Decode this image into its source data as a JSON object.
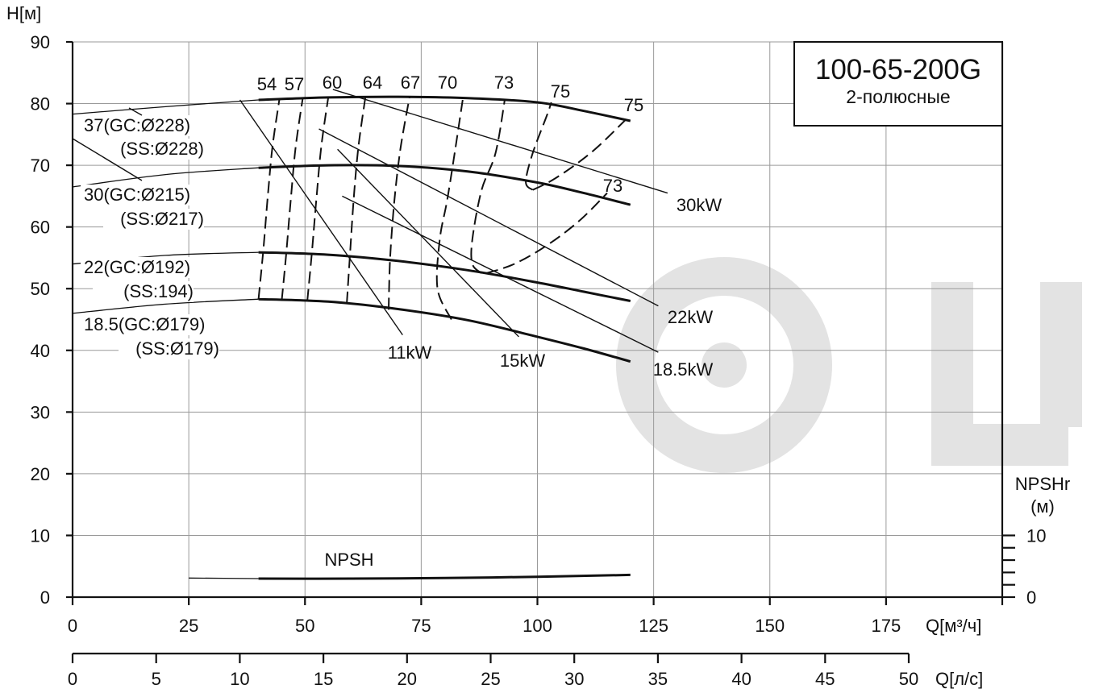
{
  "chart_data": {
    "type": "line",
    "title": "100-65-200G",
    "subtitle": "2-полюсные",
    "ylabel": "H[м]",
    "xlabel": "Q[м³/ч]",
    "x2label": "Q[л/с]",
    "y2label_line1": "NPSHr",
    "y2label_line2": "(м)",
    "xlim": [
      0,
      200
    ],
    "ylim": [
      0,
      90
    ],
    "x2lim": [
      0,
      50
    ],
    "grid": true,
    "yticks": [
      "0",
      "10",
      "20",
      "30",
      "40",
      "50",
      "60",
      "70",
      "80",
      "90"
    ],
    "xticks": [
      "0",
      "25",
      "50",
      "75",
      "100",
      "125",
      "150",
      "175"
    ],
    "x2ticks": [
      "0",
      "5",
      "10",
      "15",
      "20",
      "25",
      "30",
      "35",
      "40",
      "45",
      "50"
    ],
    "y2ticks": [
      "0",
      "10"
    ],
    "watermark": "LU",
    "curve_labels": [
      {
        "line1": "37(GC:Ø228)",
        "line2": "(SS:Ø228)"
      },
      {
        "line1": "30(GC:Ø215)",
        "line2": "(SS:Ø217)"
      },
      {
        "line1": "22(GC:Ø192)",
        "line2": "(SS:194)"
      },
      {
        "line1": "18.5(GC:Ø179)",
        "line2": "(SS:Ø179)"
      }
    ],
    "series": [
      {
        "name": "37(GC:Ø228)",
        "x": [
          0,
          20,
          40,
          55,
          70,
          85,
          100,
          110,
          120
        ],
        "y": [
          78.3,
          79.5,
          80.6,
          81.0,
          81.1,
          80.9,
          80.2,
          78.8,
          77.2
        ]
      },
      {
        "name": "30(GC:Ø215)",
        "x": [
          0,
          20,
          40,
          55,
          70,
          85,
          100,
          110,
          120
        ],
        "y": [
          66.5,
          68.5,
          69.6,
          70.0,
          69.9,
          69.0,
          67.2,
          65.5,
          63.6
        ]
      },
      {
        "name": "22(GC:Ø192)",
        "x": [
          0,
          20,
          40,
          55,
          70,
          85,
          100,
          110,
          120
        ],
        "y": [
          54.0,
          55.4,
          55.9,
          55.5,
          54.5,
          53.0,
          51.0,
          49.5,
          48.0
        ]
      },
      {
        "name": "18.5(GC:Ø179)",
        "x": [
          0,
          20,
          40,
          55,
          70,
          85,
          100,
          110,
          120
        ],
        "y": [
          46.0,
          47.5,
          48.3,
          47.9,
          46.7,
          44.9,
          42.2,
          40.3,
          38.2
        ]
      },
      {
        "name": "NPSH",
        "x": [
          25,
          40,
          60,
          80,
          100,
          120
        ],
        "y": [
          3.1,
          3.0,
          3.0,
          3.1,
          3.3,
          3.6
        ]
      }
    ],
    "efficiency_curves": [
      {
        "label": "54",
        "x": [
          40,
          41,
          42,
          43,
          44.5
        ],
        "y": [
          48.3,
          56,
          65,
          73,
          80.7
        ]
      },
      {
        "label": "57",
        "x": [
          45,
          46,
          47,
          48,
          49.5
        ],
        "y": [
          48.1,
          56,
          65,
          73,
          80.8
        ]
      },
      {
        "label": "60",
        "x": [
          50.5,
          51.5,
          52.5,
          53.5,
          55
        ],
        "y": [
          48.0,
          56,
          65,
          73,
          81.0
        ]
      },
      {
        "label": "64",
        "x": [
          59,
          59.7,
          60.5,
          61.5,
          63
        ],
        "y": [
          47.6,
          55.8,
          64.8,
          73,
          81.1
        ]
      },
      {
        "label": "67",
        "x": [
          68,
          68.3,
          69.2,
          70.5,
          72.5
        ],
        "y": [
          46.6,
          54.7,
          64,
          72.5,
          81.1
        ]
      },
      {
        "label": "70",
        "x": [
          81.5,
          78.5,
          79,
          80.5,
          82,
          84
        ],
        "y": [
          45,
          50,
          58,
          64,
          71,
          81.0
        ]
      },
      {
        "label": "73",
        "x": [
          88,
          86,
          86,
          88,
          91,
          93
        ],
        "y": [
          52.5,
          54,
          58,
          66,
          72,
          80.7
        ]
      },
      {
        "label": "75",
        "x": [
          99,
          97.5,
          99,
          102,
          103
        ],
        "y": [
          66,
          67.3,
          72,
          78,
          80.2
        ]
      },
      {
        "label": "73",
        "x": [
          89,
          95,
          102,
          109,
          115
        ],
        "y": [
          52.5,
          54,
          57,
          61,
          65.5
        ]
      },
      {
        "label": "75",
        "x": [
          99,
          103,
          108,
          113,
          119
        ],
        "y": [
          66,
          67.5,
          70,
          73,
          77.4
        ]
      }
    ],
    "efficiency_labels": [
      "54",
      "57",
      "60",
      "64",
      "67",
      "70",
      "73",
      "75",
      "75",
      "73"
    ],
    "power_lines": [
      {
        "label": "11kW",
        "x": [
          36,
          71
        ],
        "y": [
          80.6,
          42.5
        ]
      },
      {
        "label": "15kW",
        "x": [
          57,
          96
        ],
        "y": [
          72.6,
          42.2
        ]
      },
      {
        "label": "18.5kW",
        "x": [
          58,
          126
        ],
        "y": [
          65,
          39.7
        ]
      },
      {
        "label": "22kW",
        "x": [
          53,
          126
        ],
        "y": [
          75.9,
          47.2
        ]
      },
      {
        "label": "30kW",
        "x": [
          56,
          128
        ],
        "y": [
          82.3,
          65.5
        ]
      }
    ],
    "power_labels": [
      "11kW",
      "15kW",
      "18.5kW",
      "22kW",
      "30kW"
    ],
    "npsh_label": "NPSH"
  }
}
